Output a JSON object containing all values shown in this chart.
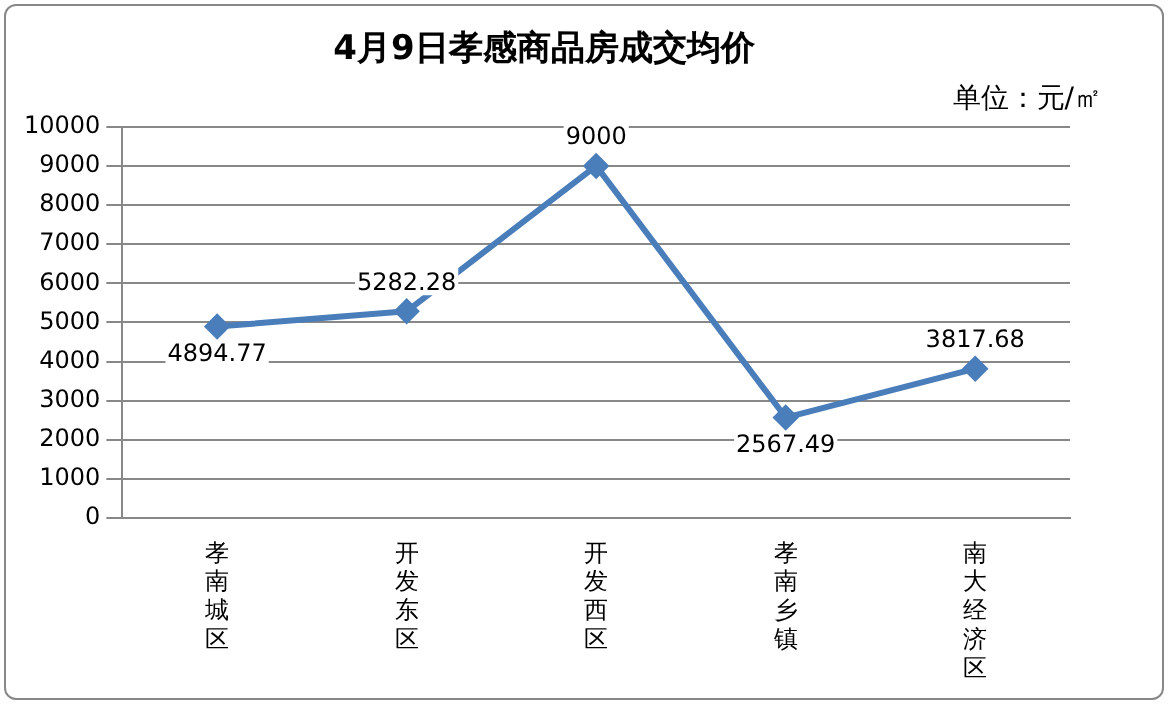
{
  "chart_data": {
    "type": "line",
    "title": "4月9日孝感商品房成交均价",
    "annotations": [
      "单位：元/㎡"
    ],
    "categories": [
      "孝南城区",
      "开发东区",
      "开发西区",
      "孝南乡镇",
      "南大经济区"
    ],
    "series": [
      {
        "color": "#4a7ebb",
        "values": [
          4894.77,
          5282.28,
          9000,
          2567.49,
          3817.68
        ]
      }
    ],
    "ylim": [
      0,
      10000
    ],
    "yticks": [
      0,
      1000,
      2000,
      3000,
      4000,
      5000,
      6000,
      7000,
      8000,
      9000,
      10000
    ],
    "grid": "y",
    "legend": false,
    "marker": "diamond",
    "line_style": "solid",
    "data_labels": true
  }
}
